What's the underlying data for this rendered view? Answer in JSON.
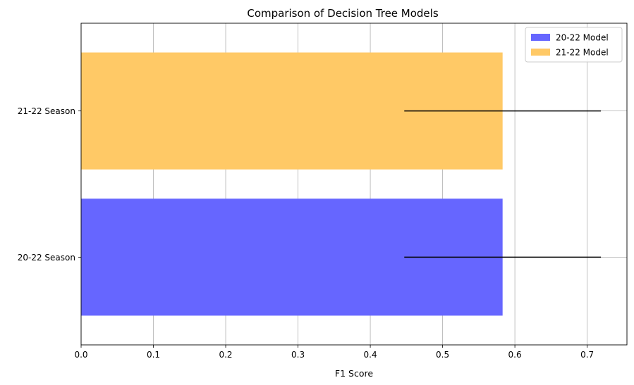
{
  "chart_data": {
    "type": "bar",
    "orientation": "horizontal",
    "title": "Comparison of Decision Tree Models",
    "xlabel": "F1 Score",
    "ylabel": "",
    "xlim": [
      0,
      0.755
    ],
    "xticks": [
      "0.0",
      "0.1",
      "0.2",
      "0.3",
      "0.4",
      "0.5",
      "0.6",
      "0.7"
    ],
    "categories": [
      "20-22 Season",
      "21-22 Season"
    ],
    "series": [
      {
        "name": "20-22 Model",
        "color": "#6666ff",
        "values": [
          0.583,
          null
        ],
        "error": [
          0.136,
          null
        ]
      },
      {
        "name": "21-22 Model",
        "color": "#ffc966",
        "values": [
          null,
          0.583
        ],
        "error": [
          null,
          0.136
        ]
      }
    ],
    "grid": true,
    "legend_position": "upper right"
  }
}
